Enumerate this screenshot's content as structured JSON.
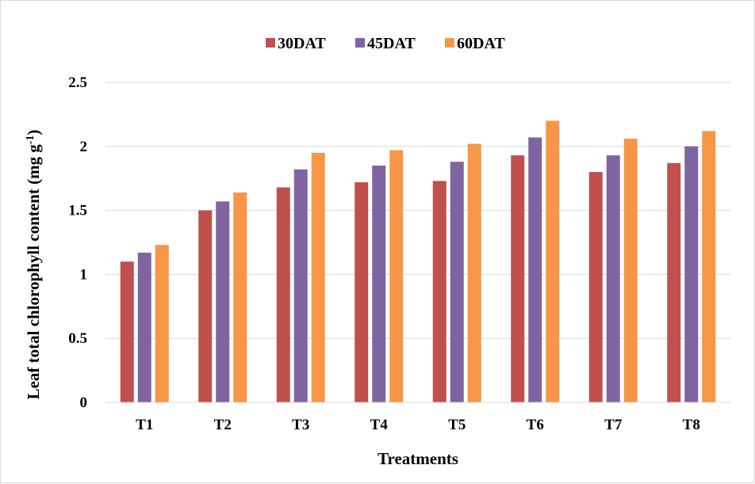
{
  "chart_data": {
    "type": "bar",
    "categories": [
      "T1",
      "T2",
      "T3",
      "T4",
      "T5",
      "T6",
      "T7",
      "T8"
    ],
    "series": [
      {
        "name": "30DAT",
        "color": "#c0504d",
        "values": [
          1.1,
          1.5,
          1.68,
          1.72,
          1.73,
          1.93,
          1.8,
          1.87
        ]
      },
      {
        "name": "45DAT",
        "color": "#8064a2",
        "values": [
          1.17,
          1.57,
          1.82,
          1.85,
          1.88,
          2.07,
          1.93,
          2.0
        ]
      },
      {
        "name": "60DAT",
        "color": "#f79646",
        "values": [
          1.23,
          1.64,
          1.95,
          1.97,
          2.02,
          2.2,
          2.06,
          2.12
        ]
      }
    ],
    "xlabel": "Treatments",
    "ylabel_main": "Leaf total chlorophyll content (mg g",
    "ylabel_sup": "-1",
    "ylabel_end": ")",
    "yticks": [
      "0",
      "0.5",
      "1",
      "1.5",
      "2",
      "2.5"
    ],
    "ylim": [
      0,
      2.5
    ],
    "grid": true,
    "legend_position": "top-center"
  }
}
